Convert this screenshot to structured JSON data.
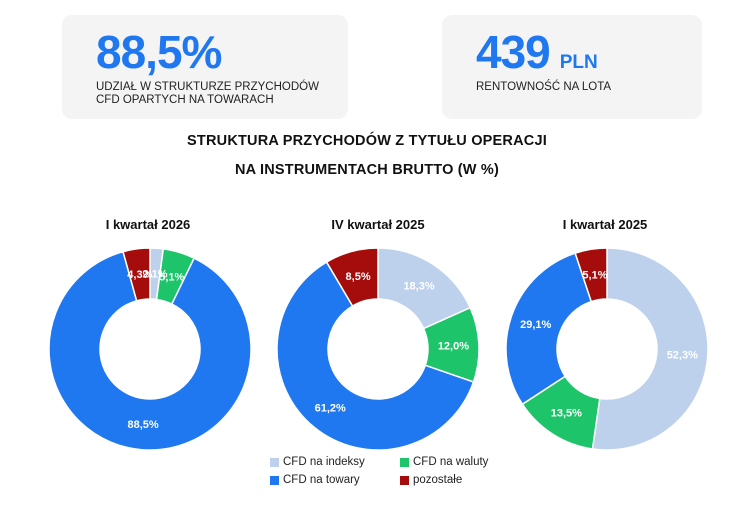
{
  "kpis": {
    "share_value": "88,5%",
    "share_caption_line1": "UDZIAŁ W STRUKTURZE PRZYCHODÓW",
    "share_caption_line2": "CFD OPARTYCH NA TOWARACH",
    "profit_value": "439",
    "profit_unit": "PLN",
    "profit_caption": "RENTOWNOŚĆ NA LOTA"
  },
  "title_line1": "STRUKTURA PRZYCHODÓW Z TYTUŁU OPERACJI",
  "title_line2": "NA INSTRUMENTACH BRUTTO (W %)",
  "colors": {
    "indices": "#bdd1ec",
    "fx": "#1ec46a",
    "commodities": "#1f78f0",
    "other": "#a50d0d",
    "accent": "#1f78f0"
  },
  "chart_data": [
    {
      "type": "pie",
      "title": "I kwartał 2026",
      "slices": [
        {
          "key": "indices",
          "value": 2.1,
          "label": "2,1%"
        },
        {
          "key": "fx",
          "value": 5.1,
          "label": "5,1%"
        },
        {
          "key": "commodities",
          "value": 88.5,
          "label": "88,5%"
        },
        {
          "key": "other",
          "value": 4.3,
          "label": "4,3%"
        }
      ]
    },
    {
      "type": "pie",
      "title": "IV kwartał 2025",
      "slices": [
        {
          "key": "indices",
          "value": 18.3,
          "label": "18,3%"
        },
        {
          "key": "fx",
          "value": 12.0,
          "label": "12,0%"
        },
        {
          "key": "commodities",
          "value": 61.2,
          "label": "61,2%"
        },
        {
          "key": "other",
          "value": 8.5,
          "label": "8,5%"
        }
      ]
    },
    {
      "type": "pie",
      "title": "I kwartał 2025",
      "slices": [
        {
          "key": "indices",
          "value": 52.3,
          "label": "52,3%"
        },
        {
          "key": "fx",
          "value": 13.5,
          "label": "13,5%"
        },
        {
          "key": "commodities",
          "value": 29.1,
          "label": "29,1%"
        },
        {
          "key": "other",
          "value": 5.1,
          "label": "5,1%"
        }
      ]
    }
  ],
  "legend": [
    {
      "key": "indices",
      "label": "CFD na indeksy"
    },
    {
      "key": "fx",
      "label": "CFD na waluty"
    },
    {
      "key": "commodities",
      "label": "CFD na towary"
    },
    {
      "key": "other",
      "label": "pozostałe"
    }
  ]
}
